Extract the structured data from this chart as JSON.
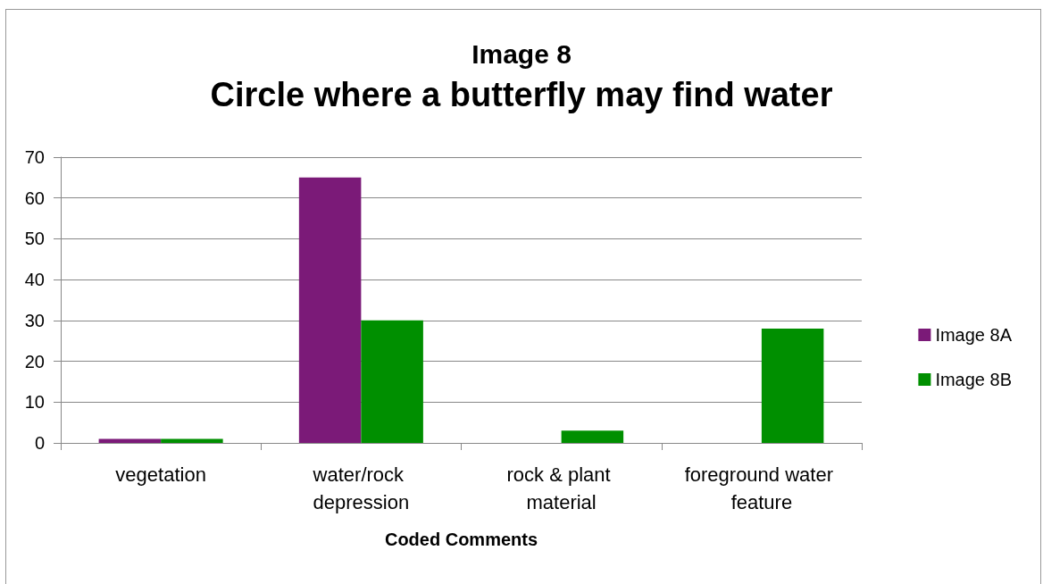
{
  "chart_data": {
    "type": "bar",
    "title": "Image 8",
    "subtitle": "Circle where a butterfly may find water",
    "xlabel": "Coded Comments",
    "categories": [
      "vegetation",
      "water/rock depression",
      "rock & plant material",
      "foreground water feature"
    ],
    "series": [
      {
        "name": "Image 8A",
        "color": "#7b1a78",
        "values": [
          1,
          65,
          0,
          0
        ]
      },
      {
        "name": "Image 8B",
        "color": "#008f00",
        "values": [
          1,
          30,
          3,
          28
        ]
      }
    ],
    "ylim": [
      0,
      70
    ],
    "yticks": [
      0,
      10,
      20,
      30,
      40,
      50,
      60,
      70
    ],
    "grid": "y",
    "legend": "right"
  }
}
